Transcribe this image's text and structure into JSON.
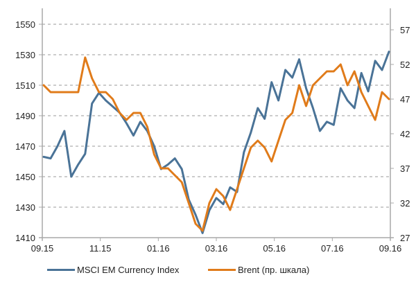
{
  "chart_data": {
    "type": "line",
    "title": "",
    "xlabel": "",
    "ylabel": "",
    "grid": "horizontal dashed",
    "legend_position": "bottom",
    "x_ticks": [
      "09.15",
      "11.15",
      "01.16",
      "03.16",
      "05.16",
      "07.16",
      "09.16"
    ],
    "y_left": {
      "ticks": [
        1410,
        1430,
        1450,
        1470,
        1490,
        1510,
        1530,
        1550
      ],
      "range": [
        1410,
        1560
      ]
    },
    "y_right": {
      "ticks": [
        27,
        32,
        37,
        42,
        47,
        52,
        57
      ],
      "range": [
        27,
        60
      ]
    },
    "series": [
      {
        "name": "MSCI EM Currency Index",
        "axis": "left",
        "color": "#4a7397",
        "x": [
          0,
          0.02,
          0.04,
          0.06,
          0.08,
          0.1,
          0.12,
          0.14,
          0.16,
          0.18,
          0.2,
          0.22,
          0.24,
          0.26,
          0.28,
          0.3,
          0.32,
          0.34,
          0.36,
          0.38,
          0.4,
          0.42,
          0.44,
          0.46,
          0.48,
          0.5,
          0.52,
          0.54,
          0.56,
          0.58,
          0.6,
          0.62,
          0.64,
          0.66,
          0.68,
          0.7,
          0.72,
          0.74,
          0.76,
          0.78,
          0.8,
          0.82,
          0.84,
          0.86,
          0.88,
          0.9,
          0.92,
          0.94,
          0.96,
          0.98,
          1.0
        ],
        "values": [
          1463,
          1462,
          1470,
          1480,
          1450,
          1458,
          1465,
          1498,
          1505,
          1500,
          1496,
          1492,
          1485,
          1477,
          1486,
          1480,
          1470,
          1455,
          1458,
          1462,
          1455,
          1435,
          1425,
          1413,
          1428,
          1436,
          1432,
          1443,
          1440,
          1466,
          1479,
          1495,
          1488,
          1512,
          1500,
          1520,
          1515,
          1527,
          1508,
          1495,
          1480,
          1486,
          1484,
          1508,
          1500,
          1495,
          1518,
          1506,
          1526,
          1520,
          1532
        ]
      },
      {
        "name": "Brent (пр. шкала)",
        "axis": "right",
        "color": "#e07b1a",
        "x": [
          0,
          0.02,
          0.04,
          0.06,
          0.08,
          0.1,
          0.12,
          0.14,
          0.16,
          0.18,
          0.2,
          0.22,
          0.24,
          0.26,
          0.28,
          0.3,
          0.32,
          0.34,
          0.36,
          0.38,
          0.4,
          0.42,
          0.44,
          0.46,
          0.48,
          0.5,
          0.52,
          0.54,
          0.56,
          0.58,
          0.6,
          0.62,
          0.64,
          0.66,
          0.68,
          0.7,
          0.72,
          0.74,
          0.76,
          0.78,
          0.8,
          0.82,
          0.84,
          0.86,
          0.88,
          0.9,
          0.92,
          0.94,
          0.96,
          0.98,
          1.0
        ],
        "values": [
          49,
          48,
          48,
          48,
          48,
          48,
          53,
          50,
          48,
          48,
          47,
          45,
          44,
          45,
          45,
          43,
          39,
          37,
          37,
          36,
          35,
          32,
          29,
          28,
          32,
          34,
          33,
          31,
          34,
          37,
          40,
          41,
          40,
          38,
          41,
          44,
          45,
          49,
          46,
          49,
          50,
          51,
          51,
          52,
          49,
          51,
          48,
          46,
          44,
          48,
          47
        ]
      }
    ]
  },
  "legend": {
    "items": [
      {
        "label": "MSCI EM Currency Index",
        "color": "#4a7397"
      },
      {
        "label": "Brent (пр. шкала)",
        "color": "#e07b1a"
      }
    ]
  }
}
